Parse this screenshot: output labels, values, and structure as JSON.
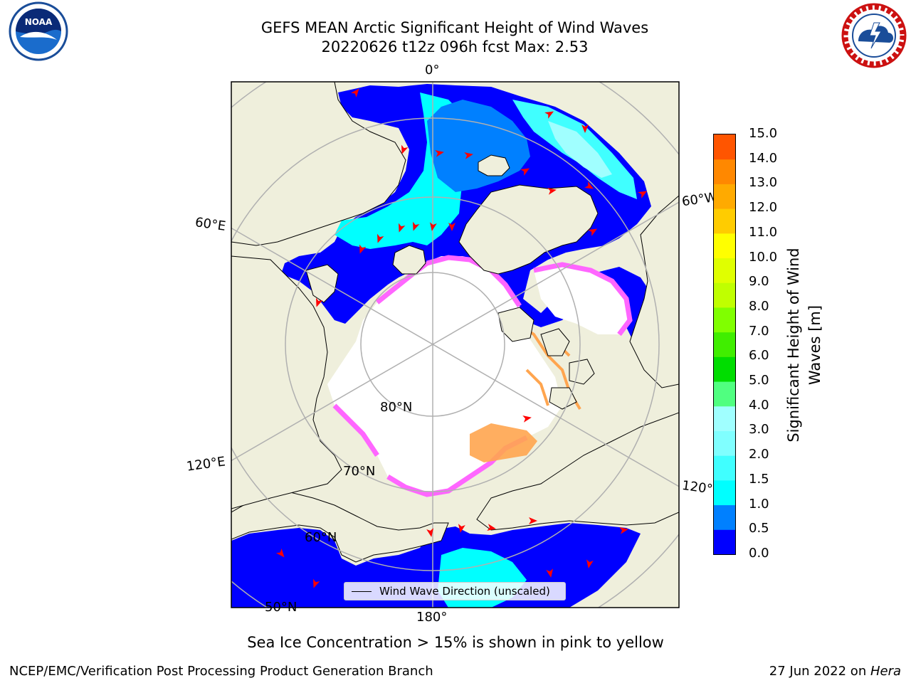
{
  "title": {
    "line1": "GEFS MEAN Arctic Significant Height of Wind Waves",
    "line2": "20220626 t12z 096h fcst   Max: 2.53"
  },
  "logos": {
    "left": "noaa-logo",
    "right": "national-weather-service-logo"
  },
  "map": {
    "projection": "north-polar-stereographic",
    "colors": {
      "land": "#efefdc",
      "ocean_no_data": "#ffffff",
      "grid": "#b0b0b0",
      "arrow": "#ff0000",
      "ice_pink": "#ff66ff",
      "ice_orange": "#ffa54f"
    },
    "longitude_labels": [
      "0°",
      "60°W",
      "120°W",
      "180°",
      "120°E",
      "60°E"
    ],
    "latitude_labels": [
      "80°N",
      "70°N",
      "60°N",
      "50°N"
    ]
  },
  "colorbar": {
    "label": "Significant Height of Wind Waves [m]",
    "ticks": [
      "15.0",
      "14.0",
      "13.0",
      "12.0",
      "11.0",
      "10.0",
      "9.0",
      "8.0",
      "7.0",
      "6.0",
      "5.0",
      "4.0",
      "3.0",
      "2.0",
      "1.5",
      "1.0",
      "0.5",
      "0.0"
    ],
    "colors": [
      "#0000ff",
      "#0080ff",
      "#00ffff",
      "#40ffff",
      "#80ffff",
      "#a0ffff",
      "#50ff80",
      "#00dd00",
      "#40ee00",
      "#80ff00",
      "#c0ff00",
      "#e0ff00",
      "#ffff00",
      "#ffcc00",
      "#ffaa00",
      "#ff8800",
      "#ff5500",
      "#ff2200",
      "#ff0000"
    ]
  },
  "legend": {
    "label": "Wind Wave Direction (unscaled)"
  },
  "ice_note": "Sea Ice Concentration > 15% is shown in pink to yellow",
  "footer": {
    "left": "NCEP/EMC/Verification Post Processing Product Generation Branch",
    "date": "27 Jun 2022 on ",
    "host": "Hera"
  }
}
